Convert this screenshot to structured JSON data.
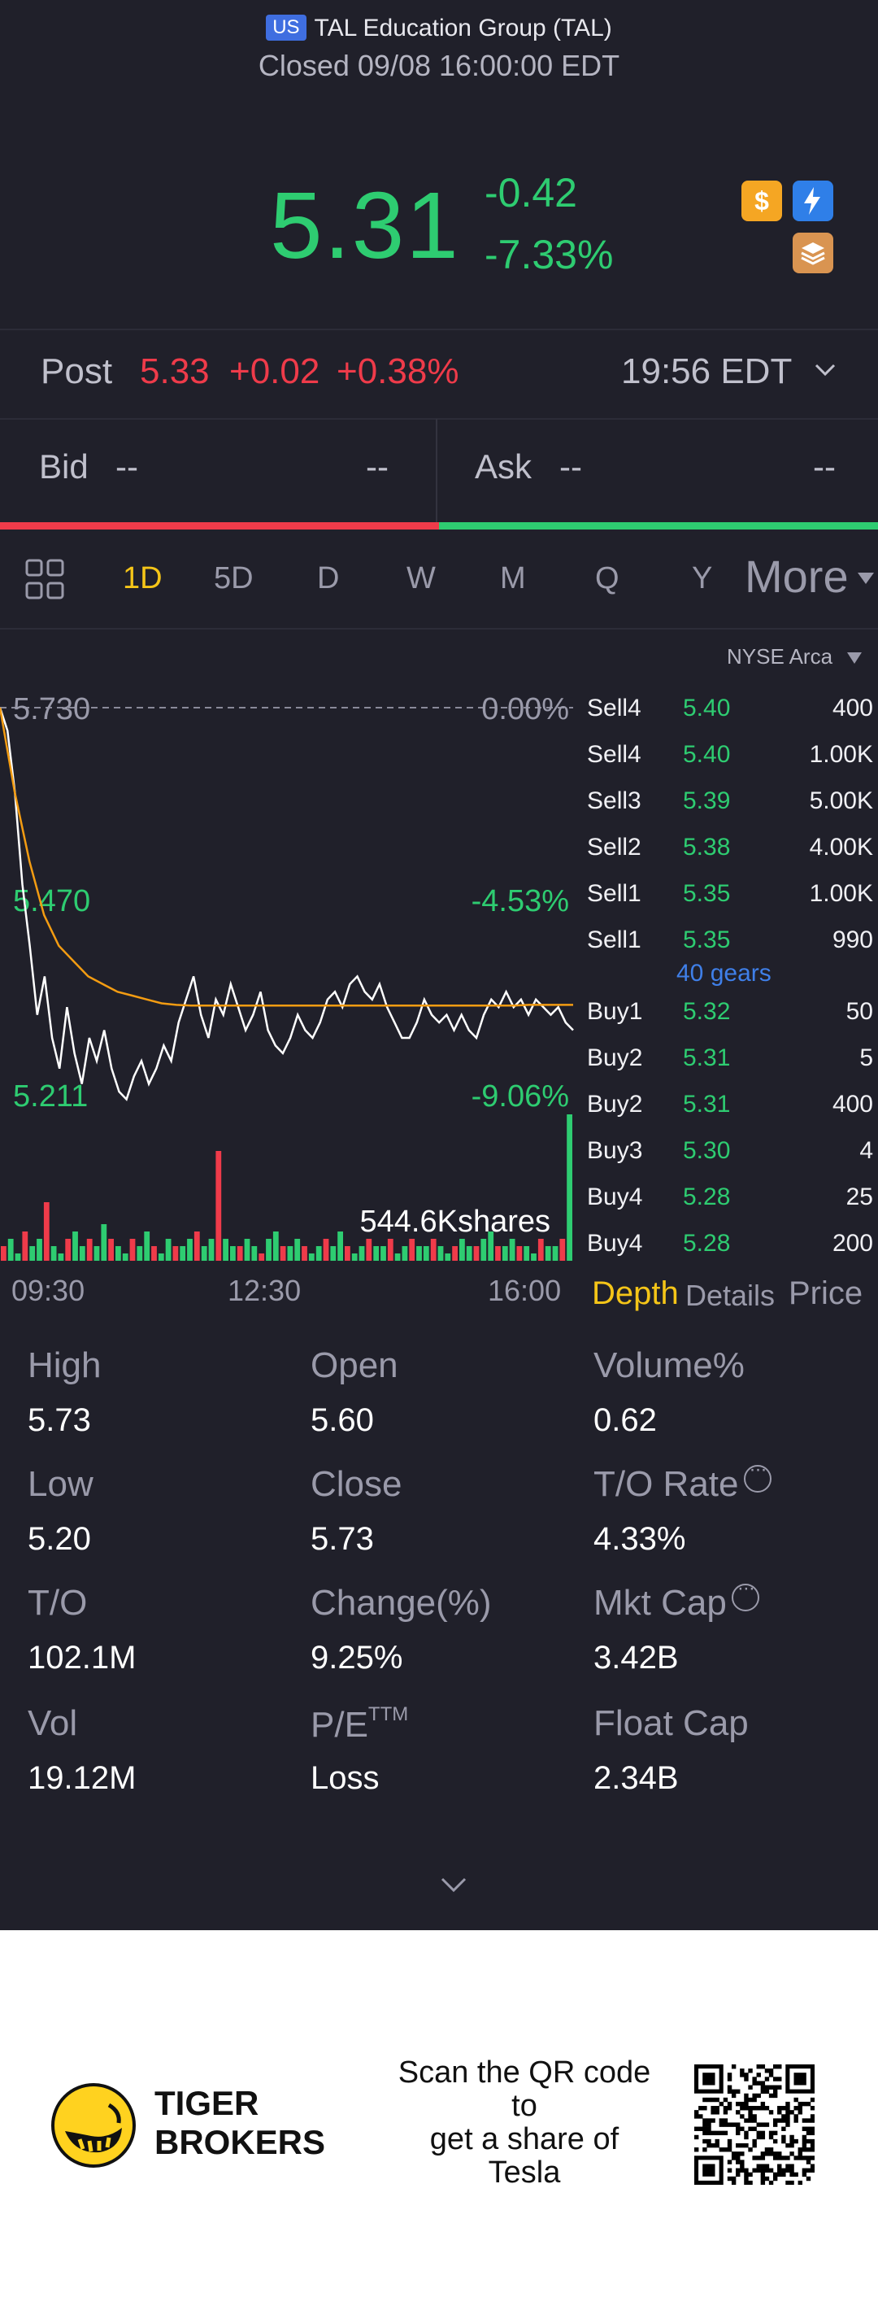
{
  "header": {
    "market_badge": "US",
    "title": "TAL Education Group (TAL)",
    "status": "Closed 09/08 16:00:00 EDT"
  },
  "quote": {
    "price": "5.31",
    "change": "-0.42",
    "change_pct": "-7.33%",
    "icons": [
      "dollar-icon",
      "lightning-icon",
      "layers-icon"
    ]
  },
  "post": {
    "label": "Post",
    "price": "5.33",
    "change": "+0.02",
    "change_pct": "+0.38%",
    "time": "19:56 EDT"
  },
  "bidask": {
    "bid_label": "Bid",
    "bid_price": "--",
    "bid_size": "--",
    "ask_label": "Ask",
    "ask_price": "--",
    "ask_size": "--"
  },
  "tabs": {
    "items": [
      "1D",
      "5D",
      "D",
      "W",
      "M",
      "Q",
      "Y"
    ],
    "active": "1D",
    "more": "More"
  },
  "exchange": "NYSE Arca",
  "chart_data": {
    "type": "line",
    "y_labels": {
      "top": "5.730",
      "mid": "5.470",
      "bottom": "5.211",
      "top_pct": "0.00%",
      "mid_pct": "-4.53%",
      "bottom_pct": "-9.06%"
    },
    "x_ticks": [
      "09:30",
      "12:30",
      "16:00"
    ],
    "volume_label": "544.6Kshares",
    "ylim": [
      5.211,
      5.73
    ],
    "series": [
      {
        "values": [
          5.73,
          5.7,
          5.62,
          5.5,
          5.42,
          5.33,
          5.38,
          5.3,
          5.26,
          5.34,
          5.28,
          5.24,
          5.3,
          5.27,
          5.31,
          5.26,
          5.23,
          5.22,
          5.25,
          5.27,
          5.24,
          5.26,
          5.29,
          5.27,
          5.32,
          5.35,
          5.38,
          5.33,
          5.3,
          5.35,
          5.33,
          5.37,
          5.34,
          5.31,
          5.33,
          5.36,
          5.31,
          5.29,
          5.28,
          5.3,
          5.33,
          5.31,
          5.3,
          5.32,
          5.35,
          5.36,
          5.34,
          5.37,
          5.38,
          5.36,
          5.35,
          5.37,
          5.34,
          5.32,
          5.3,
          5.3,
          5.32,
          5.35,
          5.33,
          5.32,
          5.33,
          5.31,
          5.33,
          5.31,
          5.3,
          5.33,
          5.35,
          5.34,
          5.36,
          5.34,
          5.35,
          5.33,
          5.35,
          5.34,
          5.33,
          5.34,
          5.32,
          5.31
        ]
      },
      {
        "values": [
          5.73,
          5.62,
          5.53,
          5.46,
          5.42,
          5.4,
          5.38,
          5.37,
          5.36,
          5.355,
          5.35,
          5.345,
          5.343,
          5.342,
          5.342,
          5.342,
          5.342,
          5.342,
          5.342,
          5.342,
          5.342,
          5.342,
          5.342,
          5.342,
          5.342,
          5.342,
          5.342,
          5.342,
          5.342,
          5.342,
          5.342,
          5.342,
          5.342,
          5.342,
          5.342,
          5.342,
          5.343,
          5.343,
          5.343,
          5.343
        ]
      }
    ],
    "volume": [
      2,
      3,
      1,
      4,
      2,
      3,
      8,
      2,
      1,
      3,
      4,
      2,
      3,
      2,
      5,
      3,
      2,
      1,
      3,
      2,
      4,
      2,
      1,
      3,
      2,
      2,
      3,
      4,
      2,
      3,
      15,
      3,
      2,
      2,
      3,
      2,
      1,
      3,
      4,
      2,
      2,
      3,
      2,
      1,
      2,
      3,
      2,
      4,
      2,
      1,
      2,
      3,
      2,
      2,
      3,
      1,
      2,
      3,
      2,
      2,
      3,
      2,
      1,
      2,
      3,
      2,
      2,
      3,
      4,
      2,
      2,
      3,
      2,
      2,
      1,
      3,
      2,
      2,
      3,
      20
    ]
  },
  "orderbook": {
    "sell": [
      {
        "label": "Sell4",
        "price": "5.40",
        "size": "400"
      },
      {
        "label": "Sell4",
        "price": "5.40",
        "size": "1.00K"
      },
      {
        "label": "Sell3",
        "price": "5.39",
        "size": "5.00K"
      },
      {
        "label": "Sell2",
        "price": "5.38",
        "size": "4.00K"
      },
      {
        "label": "Sell1",
        "price": "5.35",
        "size": "1.00K"
      },
      {
        "label": "Sell1",
        "price": "5.35",
        "size": "990"
      }
    ],
    "gears": "40 gears",
    "buy": [
      {
        "label": "Buy1",
        "price": "5.32",
        "size": "50"
      },
      {
        "label": "Buy2",
        "price": "5.31",
        "size": "5"
      },
      {
        "label": "Buy2",
        "price": "5.31",
        "size": "400"
      },
      {
        "label": "Buy3",
        "price": "5.30",
        "size": "4"
      },
      {
        "label": "Buy4",
        "price": "5.28",
        "size": "25"
      },
      {
        "label": "Buy4",
        "price": "5.28",
        "size": "200"
      }
    ],
    "tabs": [
      "Depth",
      "Details",
      "Price"
    ]
  },
  "stats": {
    "high_label": "High",
    "high": "5.73",
    "open_label": "Open",
    "open": "5.60",
    "volpct_label": "Volume%",
    "volpct": "0.62",
    "low_label": "Low",
    "low": "5.20",
    "close_label": "Close",
    "close": "5.73",
    "turnover_rate_label": "T/O Rate",
    "turnover_rate": "4.33%",
    "turnover_label": "T/O",
    "turnover": "102.1M",
    "change_label": "Change(%)",
    "change": "9.25%",
    "mktcap_label": "Mkt Cap",
    "mktcap": "3.42B",
    "vol_label": "Vol",
    "vol": "19.12M",
    "pe_label": "P/E",
    "pe_sup": "TTM",
    "pe": "Loss",
    "floatcap_label": "Float Cap",
    "floatcap": "2.34B"
  },
  "footer": {
    "brand_line1": "TIGER",
    "brand_line2": "BROKERS",
    "promo_line1": "Scan the QR code",
    "promo_line2": "to",
    "promo_line3": "get a share of",
    "promo_line4": "Tesla"
  },
  "colors": {
    "green": "#2ecc71",
    "red": "#ef3b4a",
    "accent_yellow": "#f5c518",
    "avg_line": "#f39c12",
    "background": "#20202a"
  }
}
